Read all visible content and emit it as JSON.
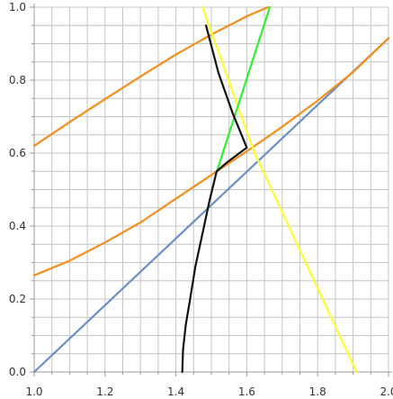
{
  "chart_data": {
    "type": "line",
    "title": "",
    "xlabel": "",
    "ylabel": "",
    "xlim": [
      1.0,
      2.0
    ],
    "ylim": [
      0.0,
      1.0
    ],
    "grid": true,
    "x_ticks": [
      "1.0",
      "1.2",
      "1.4",
      "1.6",
      "1.8",
      "2.0"
    ],
    "x_tick_values": [
      1.0,
      1.2,
      1.4,
      1.6,
      1.8,
      2.0
    ],
    "y_ticks": [
      "0.0",
      "0.2",
      "0.4",
      "0.6",
      "0.8",
      "1.0"
    ],
    "y_tick_values": [
      0.0,
      0.2,
      0.4,
      0.6,
      0.8,
      1.0
    ],
    "series": [
      {
        "color": "#6b8fc2",
        "points": [
          [
            1.0,
            0.0
          ],
          [
            2.0,
            0.915
          ]
        ]
      },
      {
        "color": "#f28e1e",
        "points": [
          [
            1.0,
            0.62
          ],
          [
            1.1,
            0.685
          ],
          [
            1.2,
            0.748
          ],
          [
            1.3,
            0.81
          ],
          [
            1.4,
            0.87
          ],
          [
            1.5,
            0.925
          ],
          [
            1.6,
            0.975
          ],
          [
            1.66,
            1.0
          ]
        ]
      },
      {
        "color": "#f28e1e",
        "points": [
          [
            1.0,
            0.265
          ],
          [
            1.1,
            0.305
          ],
          [
            1.2,
            0.355
          ],
          [
            1.3,
            0.41
          ],
          [
            1.4,
            0.475
          ],
          [
            1.5,
            0.54
          ],
          [
            1.6,
            0.605
          ],
          [
            1.7,
            0.672
          ],
          [
            1.8,
            0.744
          ],
          [
            1.9,
            0.822
          ],
          [
            2.0,
            0.915
          ]
        ]
      },
      {
        "color": "#ffff33",
        "points": [
          [
            1.475,
            1.0
          ],
          [
            1.62,
            0.605
          ],
          [
            1.91,
            0.0
          ]
        ]
      },
      {
        "color": "#33ee33",
        "points": [
          [
            1.515,
            0.548
          ],
          [
            1.665,
            1.0
          ]
        ]
      },
      {
        "color": "#111111",
        "points": [
          [
            1.485,
            0.95
          ],
          [
            1.52,
            0.82
          ],
          [
            1.56,
            0.71
          ],
          [
            1.6,
            0.615
          ],
          [
            1.545,
            0.575
          ],
          [
            1.515,
            0.55
          ],
          [
            1.495,
            0.47
          ],
          [
            1.475,
            0.38
          ],
          [
            1.455,
            0.29
          ],
          [
            1.44,
            0.2
          ],
          [
            1.428,
            0.13
          ],
          [
            1.42,
            0.06
          ],
          [
            1.418,
            0.0
          ]
        ]
      }
    ]
  }
}
